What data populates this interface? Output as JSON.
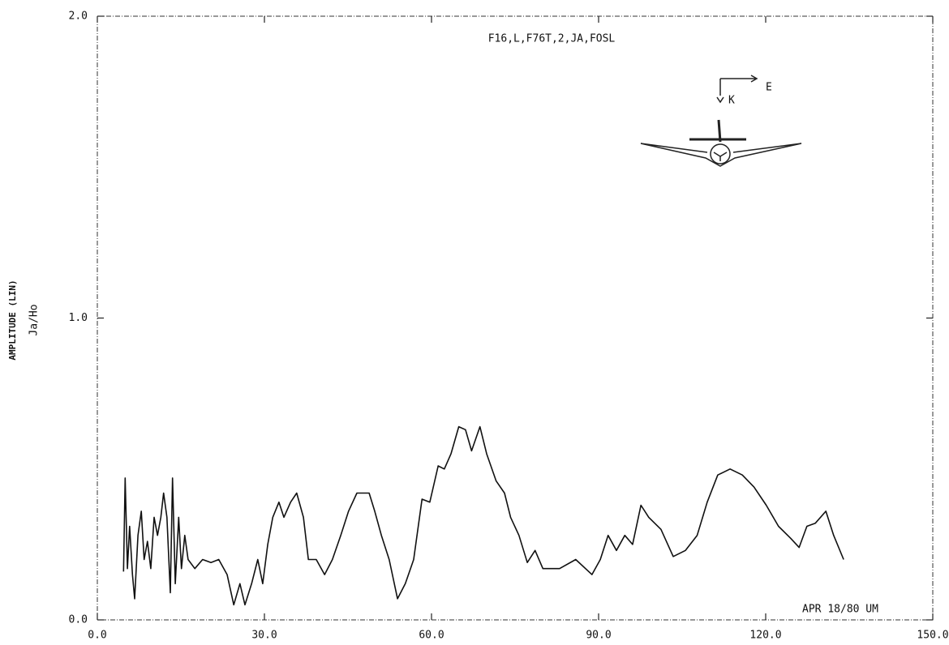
{
  "chart_data": {
    "type": "line",
    "title": "F16,L,F76T,2,JA,FOSL",
    "y_label": "AMPLITUDE (LIN)",
    "y_sublabel": "Ja/Ho",
    "annotation": "APR 18/80 UM",
    "diagram_labels": [
      "E",
      "K"
    ],
    "xlim": [
      0,
      150
    ],
    "ylim": [
      0,
      2
    ],
    "xticks": [
      {
        "value": 0,
        "label": "0.0"
      },
      {
        "value": 30,
        "label": "30.0"
      },
      {
        "value": 60,
        "label": "60.0"
      },
      {
        "value": 90,
        "label": "90.0"
      },
      {
        "value": 120,
        "label": "120.0"
      },
      {
        "value": 150,
        "label": "150.0"
      }
    ],
    "yticks": [
      {
        "value": 0,
        "label": "0.0"
      },
      {
        "value": 1,
        "label": "1.0"
      },
      {
        "value": 2,
        "label": "2.0"
      }
    ],
    "grid": false,
    "color": "#111111",
    "x": [
      4.7,
      5.0,
      5.4,
      5.8,
      6.3,
      6.7,
      7.3,
      7.9,
      8.4,
      9.0,
      9.6,
      10.2,
      10.8,
      11.4,
      11.9,
      12.5,
      13.1,
      13.5,
      14.0,
      14.6,
      15.1,
      15.7,
      16.3,
      17.5,
      18.9,
      20.4,
      21.8,
      23.3,
      24.5,
      25.6,
      26.5,
      27.7,
      28.8,
      29.7,
      30.6,
      31.5,
      32.6,
      33.5,
      34.7,
      35.8,
      37.0,
      37.9,
      39.3,
      40.8,
      42.2,
      43.7,
      45.1,
      46.6,
      48.8,
      49.8,
      51.0,
      52.4,
      53.9,
      55.3,
      56.8,
      58.3,
      59.7,
      61.2,
      62.3,
      63.5,
      64.9,
      66.1,
      67.2,
      68.7,
      69.9,
      71.6,
      73.1,
      74.2,
      75.7,
      77.2,
      78.6,
      80.0,
      83.0,
      85.9,
      88.8,
      90.3,
      91.7,
      93.2,
      94.7,
      96.1,
      97.6,
      99.0,
      101.2,
      103.4,
      105.6,
      107.7,
      109.5,
      111.4,
      113.6,
      115.8,
      117.9,
      120.1,
      122.3,
      124.5,
      126.0,
      127.4,
      128.9,
      130.8,
      132.2,
      134.0
    ],
    "values": [
      0.16,
      0.47,
      0.17,
      0.31,
      0.15,
      0.07,
      0.28,
      0.36,
      0.2,
      0.26,
      0.17,
      0.34,
      0.28,
      0.34,
      0.42,
      0.34,
      0.09,
      0.47,
      0.12,
      0.34,
      0.17,
      0.28,
      0.2,
      0.17,
      0.2,
      0.19,
      0.2,
      0.15,
      0.05,
      0.12,
      0.05,
      0.12,
      0.2,
      0.12,
      0.25,
      0.34,
      0.39,
      0.34,
      0.39,
      0.42,
      0.34,
      0.2,
      0.2,
      0.15,
      0.2,
      0.28,
      0.36,
      0.42,
      0.42,
      0.36,
      0.28,
      0.2,
      0.07,
      0.12,
      0.2,
      0.4,
      0.39,
      0.51,
      0.5,
      0.55,
      0.64,
      0.63,
      0.56,
      0.64,
      0.55,
      0.46,
      0.42,
      0.34,
      0.28,
      0.19,
      0.23,
      0.17,
      0.17,
      0.2,
      0.15,
      0.2,
      0.28,
      0.23,
      0.28,
      0.25,
      0.38,
      0.34,
      0.3,
      0.21,
      0.23,
      0.28,
      0.39,
      0.48,
      0.5,
      0.48,
      0.44,
      0.38,
      0.31,
      0.27,
      0.24,
      0.31,
      0.32,
      0.36,
      0.28,
      0.2
    ]
  }
}
